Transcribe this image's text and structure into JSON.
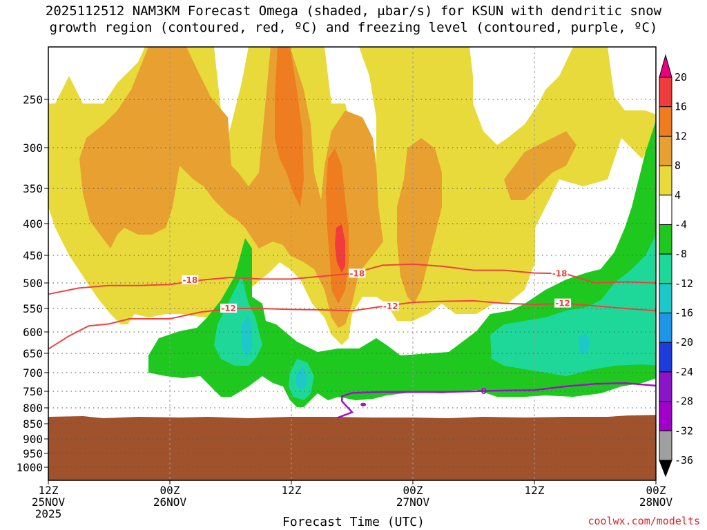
{
  "chart_data": {
    "type": "time-height contour",
    "title_line1": "2025112512 NAM3KM Forecast Omega (shaded, μbar/s) for KSUN with dendritic snow",
    "title_line2": "growth region (contoured, red, ºC) and freezing level (contoured, purple, ºC)",
    "xlabel": "Forecast Time (UTC)",
    "ylabel": "",
    "x_range_hours": [
      0,
      60
    ],
    "y_range_mb": [
      1000,
      200
    ],
    "y_ticks": [
      250,
      300,
      350,
      400,
      450,
      500,
      550,
      600,
      650,
      700,
      750,
      800,
      850,
      900,
      950,
      1000
    ],
    "y_tick_labels": [
      "250",
      "300",
      "350",
      "400",
      "450",
      "500",
      "550",
      "600",
      "650",
      "700",
      "750",
      "800",
      "850",
      "900",
      "950",
      "1000"
    ],
    "x_ticks": [
      {
        "hour": 0,
        "l1": "12Z",
        "l2": "25NOV",
        "l3": "2025"
      },
      {
        "hour": 12,
        "l1": "00Z",
        "l2": "26NOV",
        "l3": ""
      },
      {
        "hour": 24,
        "l1": "12Z",
        "l2": "",
        "l3": ""
      },
      {
        "hour": 36,
        "l1": "00Z",
        "l2": "27NOV",
        "l3": ""
      },
      {
        "hour": 48,
        "l1": "12Z",
        "l2": "",
        "l3": ""
      },
      {
        "hour": 60,
        "l1": "00Z",
        "l2": "28NOV",
        "l3": ""
      }
    ],
    "colorbar": {
      "labels": [
        "20",
        "16",
        "12",
        "8",
        "4",
        "-4",
        "-8",
        "-12",
        "-16",
        "-20",
        "-24",
        "-28",
        "-32",
        "-36"
      ],
      "colors": [
        "#e8007f",
        "#f03c3c",
        "#f07c20",
        "#e8a030",
        "#e8da3a",
        "#ffffff",
        "#1ec81e",
        "#1ed89a",
        "#1ec8c8",
        "#1e96e8",
        "#1e3cdc",
        "#8c14c8",
        "#a000c8",
        "#a0a0a0",
        "#000000"
      ]
    },
    "dgz_contours": [
      {
        "label": "-18",
        "points_hour_mb": [
          [
            0,
            522
          ],
          [
            3,
            510
          ],
          [
            6,
            505
          ],
          [
            9,
            505
          ],
          [
            12,
            503
          ],
          [
            15,
            495
          ],
          [
            18,
            490
          ],
          [
            21,
            493
          ],
          [
            24,
            493
          ],
          [
            27,
            488
          ],
          [
            30,
            483
          ],
          [
            33,
            468
          ],
          [
            36,
            466
          ],
          [
            39,
            470
          ],
          [
            42,
            477
          ],
          [
            45,
            477
          ],
          [
            48,
            482
          ],
          [
            51,
            483
          ],
          [
            54,
            500
          ],
          [
            57,
            498
          ],
          [
            60,
            500
          ]
        ]
      },
      {
        "label": "-12",
        "points_hour_mb": [
          [
            0,
            640
          ],
          [
            2,
            610
          ],
          [
            4,
            587
          ],
          [
            6,
            583
          ],
          [
            8,
            572
          ],
          [
            12,
            572
          ],
          [
            15,
            558
          ],
          [
            18,
            550
          ],
          [
            21,
            550
          ],
          [
            24,
            552
          ],
          [
            27,
            553
          ],
          [
            30,
            555
          ],
          [
            33,
            546
          ],
          [
            36,
            538
          ],
          [
            39,
            536
          ],
          [
            42,
            535
          ],
          [
            45,
            540
          ],
          [
            48,
            542
          ],
          [
            51,
            540
          ],
          [
            54,
            545
          ],
          [
            57,
            550
          ],
          [
            60,
            555
          ]
        ]
      }
    ],
    "freezing_level": {
      "label": "0",
      "points_hour_mb": [
        [
          28.5,
          832
        ],
        [
          30,
          814
        ],
        [
          29,
          780
        ],
        [
          29,
          765
        ],
        [
          30,
          755
        ],
        [
          33,
          752
        ],
        [
          36,
          752
        ],
        [
          39,
          752
        ],
        [
          42,
          750
        ],
        [
          45,
          748
        ],
        [
          48,
          747
        ],
        [
          51,
          737
        ],
        [
          54,
          730
        ],
        [
          57,
          728
        ],
        [
          60,
          735
        ]
      ]
    },
    "terrain_top_mb": 822
  }
}
